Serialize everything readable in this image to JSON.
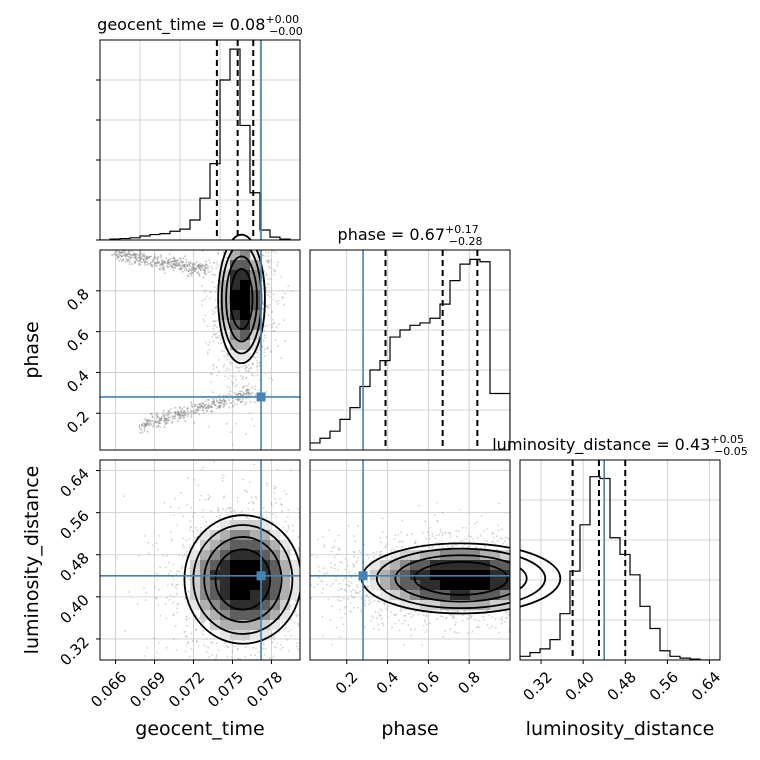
{
  "chart_data": {
    "type": "corner",
    "parameters": [
      "geocent_time",
      "phase",
      "luminosity_distance"
    ],
    "truths": {
      "geocent_time": 0.0772,
      "phase": 0.28,
      "luminosity_distance": 0.44
    },
    "truth_color": "#4682b4",
    "panels": [
      {
        "type": "histogram",
        "parameter": "geocent_time",
        "title": {
          "prefix": "geocent_time = ",
          "value": "0.08",
          "plus": "+0.00",
          "minus": "−0.00"
        },
        "xlim": [
          0.0648,
          0.0802
        ],
        "bin_edges": [
          0.0648,
          0.06557,
          0.06634,
          0.06711,
          0.06788,
          0.06865,
          0.06942,
          0.07019,
          0.07096,
          0.07173,
          0.0725,
          0.07327,
          0.07404,
          0.07481,
          0.07558,
          0.07635,
          0.07712,
          0.07789,
          0.07866,
          0.07943,
          0.0802
        ],
        "counts": [
          0,
          0.5,
          0.8,
          1.2,
          2.2,
          3.0,
          3.5,
          4.8,
          6.0,
          11.0,
          23.0,
          42.0,
          88.0,
          105.0,
          63.0,
          26.0,
          5.5,
          1.6,
          0.5,
          0
        ],
        "ymax": 110,
        "quantiles": [
          0.0738,
          0.0754,
          0.0766
        ]
      },
      {
        "type": "histogram",
        "parameter": "phase",
        "title": {
          "prefix": "phase = ",
          "value": "0.67",
          "plus": "+0.17",
          "minus": "−0.28"
        },
        "xlim": [
          0.02,
          1.0
        ],
        "bin_edges": [
          0.02,
          0.069,
          0.118,
          0.167,
          0.216,
          0.265,
          0.314,
          0.363,
          0.412,
          0.461,
          0.51,
          0.559,
          0.608,
          0.657,
          0.706,
          0.755,
          0.804,
          0.853,
          0.902,
          0.951,
          1.0
        ],
        "counts": [
          3,
          5,
          8,
          13,
          18,
          27,
          34,
          38,
          48,
          51,
          53,
          54,
          56,
          62,
          72,
          79,
          81,
          80,
          24,
          24
        ],
        "ymax": 85,
        "quantiles": [
          0.39,
          0.67,
          0.84
        ]
      },
      {
        "type": "histogram",
        "parameter": "luminosity_distance",
        "title": {
          "prefix": "luminosity_distance = ",
          "value": "0.43",
          "plus": "+0.05",
          "minus": "−0.05"
        },
        "xlim": [
          0.28,
          0.66
        ],
        "bin_edges": [
          0.28,
          0.299,
          0.318,
          0.337,
          0.356,
          0.375,
          0.394,
          0.413,
          0.432,
          0.451,
          0.47,
          0.489,
          0.508,
          0.527,
          0.546,
          0.565,
          0.584,
          0.603,
          0.622,
          0.641,
          0.66
        ],
        "counts": [
          2,
          4,
          6,
          11,
          25,
          48,
          73,
          99,
          98,
          66,
          57,
          46,
          29,
          17,
          5,
          2,
          1,
          0.5,
          0,
          0
        ],
        "ymax": 108,
        "quantiles": [
          0.38,
          0.43,
          0.48
        ]
      },
      {
        "type": "density2d",
        "x": "geocent_time",
        "y": "phase",
        "xlim": [
          0.0648,
          0.0802
        ],
        "ylim": [
          0.02,
          1.0
        ],
        "yticks": [
          0.2,
          0.4,
          0.6,
          0.8
        ],
        "ylabel": "phase",
        "mass": {
          "x": 0.0757,
          "y": 0.76
        },
        "arm_upper": {
          "from": [
            0.066,
            0.98
          ],
          "to": [
            0.073,
            0.9
          ]
        },
        "arm_lower": {
          "from": [
            0.068,
            0.14
          ],
          "to": [
            0.0765,
            0.3
          ]
        }
      },
      {
        "type": "density2d",
        "x": "geocent_time",
        "y": "luminosity_distance",
        "xlim": [
          0.0648,
          0.0802
        ],
        "ylim": [
          0.28,
          0.66
        ],
        "yticks": [
          0.32,
          0.4,
          0.48,
          0.56,
          0.64
        ],
        "xticks": [
          0.066,
          0.069,
          0.072,
          0.075,
          0.078
        ],
        "ylabel": "luminosity_distance",
        "xlabel": "geocent_time",
        "mass": {
          "x": 0.0758,
          "y": 0.433
        }
      },
      {
        "type": "density2d",
        "x": "phase",
        "y": "luminosity_distance",
        "xlim": [
          0.02,
          1.0
        ],
        "ylim": [
          0.28,
          0.66
        ],
        "xticks": [
          0.2,
          0.4,
          0.6,
          0.8
        ],
        "xlabel": "phase",
        "mass": {
          "x": 0.76,
          "y": 0.435
        }
      }
    ],
    "diag_xticks_last": [
      0.32,
      0.4,
      0.48,
      0.56,
      0.64
    ],
    "diag_xlabel_last": "luminosity_distance",
    "grid": true
  }
}
